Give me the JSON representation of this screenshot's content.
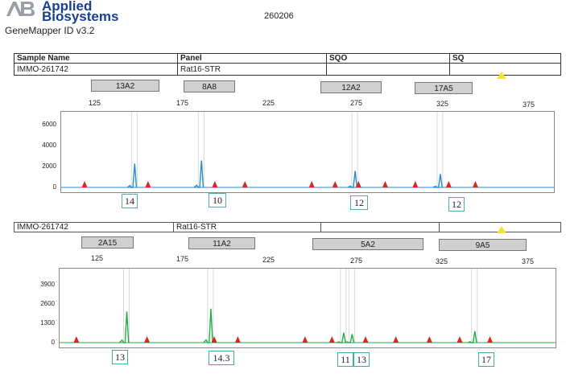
{
  "header": {
    "brand_line1": "Applied",
    "brand_line2": "Biosystems",
    "product": "GeneMapper ID v3.2",
    "run_id": "260206"
  },
  "table": {
    "col_sample": "Sample Name",
    "col_panel": "Panel",
    "col_sqo": "SQO",
    "col_sq": "SQ"
  },
  "panels": [
    {
      "sample": "IMMO-261742",
      "panel": "Rat16-STR",
      "markers": [
        "13A2",
        "8A8",
        "12A2",
        "17A5"
      ],
      "x_ticks": [
        "125",
        "175",
        "225",
        "275",
        "325",
        "375"
      ],
      "y_ticks": [
        "6000",
        "4000",
        "2000",
        "0"
      ],
      "alleles": [
        "14",
        "10",
        "12",
        "12"
      ],
      "color": "#2a8bc9"
    },
    {
      "sample": "IMMO-261742",
      "panel": "Rat16-STR",
      "markers": [
        "2A15",
        "11A2",
        "5A2",
        "9A5"
      ],
      "x_ticks": [
        "125",
        "175",
        "225",
        "275",
        "325",
        "375"
      ],
      "y_ticks": [
        "3900",
        "2600",
        "1300",
        "0"
      ],
      "alleles": [
        "13",
        "14.3",
        "11",
        "13",
        "17"
      ],
      "color": "#2aa84a"
    }
  ],
  "chart_data": [
    {
      "type": "line",
      "ylim": [
        0,
        7000
      ],
      "xlim": [
        100,
        395
      ],
      "peaks": [
        {
          "x": 144,
          "y": 2300
        },
        {
          "x": 184,
          "y": 2600
        },
        {
          "x": 276,
          "y": 1600
        },
        {
          "x": 327,
          "y": 1300
        }
      ],
      "standards_x": [
        114,
        152,
        192,
        210,
        250,
        264,
        278,
        294,
        312,
        332,
        348
      ]
    },
    {
      "type": "line",
      "ylim": [
        0,
        5000
      ],
      "xlim": [
        100,
        395
      ],
      "peaks": [
        {
          "x": 140,
          "y": 2200
        },
        {
          "x": 190,
          "y": 2400
        },
        {
          "x": 269,
          "y": 700
        },
        {
          "x": 274,
          "y": 600
        },
        {
          "x": 347,
          "y": 800
        }
      ],
      "standards_x": [
        110,
        152,
        192,
        206,
        246,
        262,
        282,
        300,
        320,
        338,
        356
      ]
    }
  ]
}
